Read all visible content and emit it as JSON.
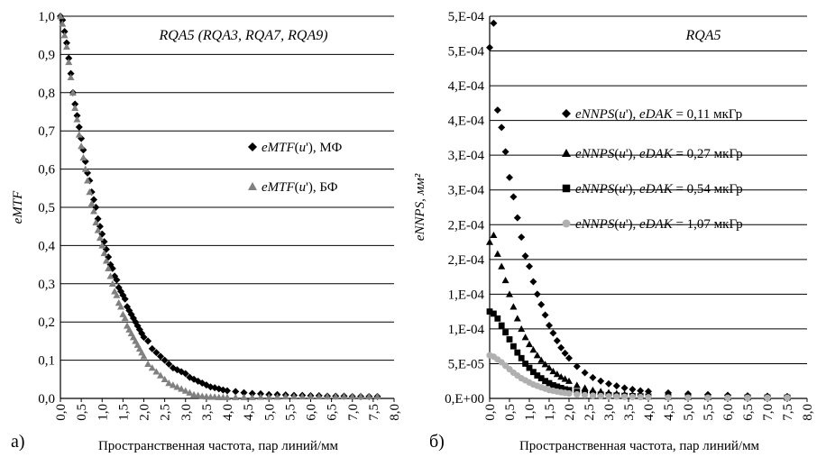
{
  "panels": [
    {
      "panel_label": "а)",
      "annotation_parts": [
        {
          "t": "RQA",
          "i": true
        },
        {
          "t": "5 (",
          "i": false
        },
        {
          "t": "RQA",
          "i": true
        },
        {
          "t": "3, ",
          "i": false
        },
        {
          "t": "RQA",
          "i": true
        },
        {
          "t": "7, ",
          "i": false
        },
        {
          "t": "RQA",
          "i": true
        },
        {
          "t": "9)",
          "i": false
        }
      ],
      "ylabel": "eMTF",
      "xlabel": "Пространственная частота, пар линий/мм",
      "yticks": [
        "0,0",
        "0,1",
        "0,2",
        "0,3",
        "0,4",
        "0,5",
        "0,6",
        "0,7",
        "0,8",
        "0,9",
        "1,0"
      ],
      "xticks": [
        "0,0",
        "0,5",
        "1,0",
        "1,5",
        "2,0",
        "2,5",
        "3,0",
        "3,5",
        "4,0",
        "4,5",
        "5,0",
        "5,5",
        "6,0",
        "6,5",
        "7,0",
        "7,5",
        "8,0"
      ],
      "legend": [
        {
          "parts": [
            {
              "t": "eMTF",
              "i": true
            },
            {
              "t": "(",
              "i": false
            },
            {
              "t": "u",
              "i": true
            },
            {
              "t": "'), МФ",
              "i": false
            }
          ],
          "color": "#000000",
          "marker": "diamond"
        },
        {
          "parts": [
            {
              "t": "eMTF",
              "i": true
            },
            {
              "t": "(",
              "i": false
            },
            {
              "t": "u",
              "i": true
            },
            {
              "t": "'), БФ",
              "i": false
            }
          ],
          "color": "#808080",
          "marker": "triangle"
        }
      ]
    },
    {
      "panel_label": "б)",
      "annotation_parts": [
        {
          "t": "RQA",
          "i": true
        },
        {
          "t": "5",
          "i": false
        }
      ],
      "ylabel": "eNNPS, мм²",
      "xlabel": "Пространственная частота, пар линий/мм",
      "yticks": [
        "0,E+00",
        "5,E-05",
        "1,E-04",
        "1,E-04",
        "2,E-04",
        "2,E-04",
        "3,E-04",
        "3,E-04",
        "4,E-04",
        "4,E-04",
        "5,E-04",
        "5,E-04"
      ],
      "xticks": [
        "0,0",
        "0,5",
        "1,0",
        "1,5",
        "2,0",
        "2,5",
        "3,0",
        "3,5",
        "4,0",
        "4,5",
        "5,0",
        "5,5",
        "6,0",
        "6,5",
        "7,0",
        "7,5",
        "8,0"
      ],
      "legend": [
        {
          "parts": [
            {
              "t": "eNNPS",
              "i": true
            },
            {
              "t": "(",
              "i": false
            },
            {
              "t": "u",
              "i": true
            },
            {
              "t": "'), ",
              "i": false
            },
            {
              "t": "eDAK",
              "i": true
            },
            {
              "t": " = 0,11 мкГр",
              "i": false
            }
          ],
          "color": "#000000",
          "marker": "diamond"
        },
        {
          "parts": [
            {
              "t": "eNNPS",
              "i": true
            },
            {
              "t": "(",
              "i": false
            },
            {
              "t": "u",
              "i": true
            },
            {
              "t": "'), ",
              "i": false
            },
            {
              "t": "eDAK",
              "i": true
            },
            {
              "t": " = 0,27 мкГр",
              "i": false
            }
          ],
          "color": "#000000",
          "marker": "triangle"
        },
        {
          "parts": [
            {
              "t": "eNNPS",
              "i": true
            },
            {
              "t": "(",
              "i": false
            },
            {
              "t": "u",
              "i": true
            },
            {
              "t": "'), ",
              "i": false
            },
            {
              "t": "eDAK",
              "i": true
            },
            {
              "t": " = 0,54 мкГр",
              "i": false
            }
          ],
          "color": "#000000",
          "marker": "square"
        },
        {
          "parts": [
            {
              "t": "eNNPS",
              "i": true
            },
            {
              "t": "(",
              "i": false
            },
            {
              "t": "u",
              "i": true
            },
            {
              "t": "'), ",
              "i": false
            },
            {
              "t": "eDAK",
              "i": true
            },
            {
              "t": " = 1,07 мкГр",
              "i": false
            }
          ],
          "color": "#b0b0b0",
          "marker": "circle"
        }
      ]
    }
  ],
  "chart_data": [
    {
      "type": "scatter",
      "xlim": [
        0,
        8
      ],
      "ylim": [
        0,
        1
      ],
      "grid": "horizontal",
      "legend_position": "right-middle",
      "series": [
        {
          "name": "eMTF(u'), МФ",
          "marker": "diamond",
          "color": "#000000",
          "x": [
            0.0,
            0.05,
            0.1,
            0.15,
            0.2,
            0.25,
            0.3,
            0.35,
            0.4,
            0.45,
            0.5,
            0.55,
            0.6,
            0.65,
            0.7,
            0.75,
            0.8,
            0.85,
            0.9,
            0.95,
            1.0,
            1.05,
            1.1,
            1.15,
            1.2,
            1.25,
            1.3,
            1.35,
            1.4,
            1.45,
            1.5,
            1.55,
            1.6,
            1.65,
            1.7,
            1.75,
            1.8,
            1.85,
            1.9,
            1.95,
            2.0,
            2.1,
            2.2,
            2.3,
            2.4,
            2.5,
            2.6,
            2.7,
            2.8,
            2.9,
            3.0,
            3.1,
            3.2,
            3.3,
            3.4,
            3.5,
            3.6,
            3.7,
            3.8,
            3.9,
            4.0,
            4.2,
            4.4,
            4.6,
            4.8,
            5.0,
            5.2,
            5.4,
            5.6,
            5.8,
            6.0,
            6.2,
            6.4,
            6.6,
            6.8,
            7.0,
            7.2,
            7.4,
            7.6
          ],
          "y": [
            1.0,
            0.99,
            0.96,
            0.93,
            0.89,
            0.85,
            0.8,
            0.77,
            0.74,
            0.71,
            0.68,
            0.65,
            0.62,
            0.59,
            0.57,
            0.54,
            0.52,
            0.5,
            0.47,
            0.45,
            0.43,
            0.41,
            0.39,
            0.37,
            0.35,
            0.34,
            0.32,
            0.31,
            0.29,
            0.28,
            0.27,
            0.26,
            0.24,
            0.23,
            0.22,
            0.21,
            0.2,
            0.19,
            0.18,
            0.17,
            0.16,
            0.15,
            0.13,
            0.12,
            0.11,
            0.1,
            0.09,
            0.08,
            0.075,
            0.07,
            0.065,
            0.055,
            0.05,
            0.045,
            0.04,
            0.035,
            0.03,
            0.028,
            0.025,
            0.022,
            0.02,
            0.018,
            0.015,
            0.013,
            0.012,
            0.01,
            0.01,
            0.009,
            0.008,
            0.008,
            0.007,
            0.007,
            0.006,
            0.006,
            0.006,
            0.005,
            0.005,
            0.005,
            0.005
          ]
        },
        {
          "name": "eMTF(u'), БФ",
          "marker": "triangle",
          "color": "#808080",
          "x": [
            0.0,
            0.05,
            0.1,
            0.15,
            0.2,
            0.25,
            0.3,
            0.35,
            0.4,
            0.45,
            0.5,
            0.55,
            0.6,
            0.65,
            0.7,
            0.75,
            0.8,
            0.85,
            0.9,
            0.95,
            1.0,
            1.05,
            1.1,
            1.15,
            1.2,
            1.25,
            1.3,
            1.35,
            1.4,
            1.45,
            1.5,
            1.55,
            1.6,
            1.65,
            1.7,
            1.75,
            1.8,
            1.85,
            1.9,
            1.95,
            2.0,
            2.1,
            2.2,
            2.3,
            2.4,
            2.5,
            2.6,
            2.7,
            2.8,
            2.9,
            3.0,
            3.1,
            3.2,
            3.3,
            3.4,
            3.5,
            3.6,
            3.7,
            3.8,
            3.9,
            4.0,
            4.2,
            4.4,
            4.6,
            4.8,
            5.0,
            5.2,
            5.4,
            5.6,
            5.8,
            6.0,
            6.2,
            6.4,
            6.6,
            6.8,
            7.0,
            7.2,
            7.4,
            7.6
          ],
          "y": [
            1.0,
            0.98,
            0.95,
            0.92,
            0.88,
            0.84,
            0.8,
            0.76,
            0.73,
            0.69,
            0.66,
            0.63,
            0.6,
            0.57,
            0.54,
            0.51,
            0.49,
            0.46,
            0.44,
            0.42,
            0.4,
            0.38,
            0.36,
            0.34,
            0.32,
            0.3,
            0.28,
            0.27,
            0.25,
            0.24,
            0.22,
            0.21,
            0.19,
            0.18,
            0.17,
            0.16,
            0.15,
            0.14,
            0.13,
            0.12,
            0.11,
            0.09,
            0.08,
            0.07,
            0.06,
            0.05,
            0.04,
            0.035,
            0.03,
            0.025,
            0.02,
            0.015,
            0.01,
            0.008,
            0.006,
            0.005,
            0.004,
            0.004,
            0.003,
            0.003,
            0.003,
            0.003,
            0.003,
            0.003,
            0.004,
            0.004,
            0.004,
            0.005,
            0.005,
            0.005,
            0.005,
            0.005,
            0.005,
            0.005,
            0.005,
            0.005,
            0.005,
            0.005,
            0.005
          ]
        }
      ]
    },
    {
      "type": "scatter",
      "xlim": [
        0,
        8
      ],
      "ylim": [
        0,
        0.00055
      ],
      "grid": "horizontal",
      "legend_position": "right-middle",
      "series": [
        {
          "name": "eNNPS(u'), eDAK = 0,11 мкГр",
          "marker": "diamond",
          "color": "#000000",
          "x": [
            0.0,
            0.1,
            0.2,
            0.3,
            0.4,
            0.5,
            0.6,
            0.7,
            0.8,
            0.9,
            1.0,
            1.1,
            1.2,
            1.3,
            1.4,
            1.5,
            1.6,
            1.7,
            1.8,
            1.9,
            2.0,
            2.2,
            2.4,
            2.6,
            2.8,
            3.0,
            3.2,
            3.4,
            3.6,
            3.8,
            4.0,
            4.5,
            5.0,
            5.5,
            6.0,
            6.5,
            7.0,
            7.5
          ],
          "y": [
            0.000505,
            0.00054,
            0.000415,
            0.00039,
            0.000355,
            0.000318,
            0.00029,
            0.00026,
            0.000232,
            0.000205,
            0.00019,
            0.000168,
            0.00015,
            0.000135,
            0.00012,
            0.000105,
            9.4e-05,
            8.3e-05,
            7.3e-05,
            6.5e-05,
            5.8e-05,
            4.6e-05,
            3.7e-05,
            3e-05,
            2.5e-05,
            2.1e-05,
            1.8e-05,
            1.5e-05,
            1.3e-05,
            1.1e-05,
            1e-05,
            8e-06,
            6.5e-06,
            5.5e-06,
            4.5e-06,
            3.8e-06,
            3.2e-06,
            2.8e-06
          ]
        },
        {
          "name": "eNNPS(u'), eDAK = 0,27 мкГр",
          "marker": "triangle",
          "color": "#000000",
          "x": [
            0.0,
            0.1,
            0.2,
            0.3,
            0.4,
            0.5,
            0.6,
            0.7,
            0.8,
            0.9,
            1.0,
            1.1,
            1.2,
            1.3,
            1.4,
            1.5,
            1.6,
            1.7,
            1.8,
            1.9,
            2.0,
            2.2,
            2.4,
            2.6,
            2.8,
            3.0,
            3.2,
            3.4,
            3.6,
            3.8,
            4.0,
            4.5,
            5.0,
            5.5,
            6.0,
            6.5,
            7.0,
            7.5
          ],
          "y": [
            0.000225,
            0.000235,
            0.000208,
            0.00019,
            0.00017,
            0.00015,
            0.000132,
            0.000115,
            0.0001,
            8.8e-05,
            7.8e-05,
            7e-05,
            6.2e-05,
            5.5e-05,
            4.9e-05,
            4.4e-05,
            3.9e-05,
            3.5e-05,
            3.1e-05,
            2.8e-05,
            2.5e-05,
            1.9e-05,
            1.5e-05,
            1.2e-05,
            1e-05,
            8.5e-06,
            7.2e-06,
            6.2e-06,
            5.4e-06,
            4.7e-06,
            4.2e-06,
            3.3e-06,
            2.7e-06,
            2.3e-06,
            2e-06,
            1.8e-06,
            1.6e-06,
            1.5e-06
          ]
        },
        {
          "name": "eNNPS(u'), eDAK = 0,54 мкГр",
          "marker": "square",
          "color": "#000000",
          "x": [
            0.0,
            0.1,
            0.2,
            0.3,
            0.4,
            0.5,
            0.6,
            0.7,
            0.8,
            0.9,
            1.0,
            1.1,
            1.2,
            1.3,
            1.4,
            1.5,
            1.6,
            1.7,
            1.8,
            1.9,
            2.0,
            2.2,
            2.4,
            2.6,
            2.8,
            3.0,
            3.2,
            3.4,
            3.6,
            3.8,
            4.0,
            4.5,
            5.0,
            5.5,
            6.0,
            6.5,
            7.0,
            7.5
          ],
          "y": [
            0.000125,
            0.000122,
            0.000115,
            0.000105,
            9.5e-05,
            8.5e-05,
            7.5e-05,
            6.6e-05,
            5.8e-05,
            5e-05,
            4.4e-05,
            3.8e-05,
            3.3e-05,
            2.9e-05,
            2.5e-05,
            2.2e-05,
            1.9e-05,
            1.7e-05,
            1.5e-05,
            1.3e-05,
            1.2e-05,
            9.5e-06,
            7.8e-06,
            6.5e-06,
            5.5e-06,
            4.8e-06,
            4.2e-06,
            3.7e-06,
            3.3e-06,
            3e-06,
            2.7e-06,
            2.2e-06,
            1.9e-06,
            1.7e-06,
            1.5e-06,
            1.4e-06,
            1.3e-06,
            1.2e-06
          ]
        },
        {
          "name": "eNNPS(u'), eDAK = 1,07 мкГр",
          "marker": "circle",
          "color": "#b0b0b0",
          "x": [
            0.0,
            0.1,
            0.2,
            0.3,
            0.4,
            0.5,
            0.6,
            0.7,
            0.8,
            0.9,
            1.0,
            1.1,
            1.2,
            1.3,
            1.4,
            1.5,
            1.6,
            1.7,
            1.8,
            1.9,
            2.0,
            2.2,
            2.4,
            2.6,
            2.8,
            3.0,
            3.2,
            3.4,
            3.6,
            3.8,
            4.0,
            4.5,
            5.0,
            5.5,
            6.0,
            6.5,
            7.0,
            7.5
          ],
          "y": [
            6.2e-05,
            6e-05,
            5.6e-05,
            5.2e-05,
            4.7e-05,
            4.2e-05,
            3.7e-05,
            3.3e-05,
            2.9e-05,
            2.6e-05,
            2.3e-05,
            2e-05,
            1.8e-05,
            1.6e-05,
            1.4e-05,
            1.2e-05,
            1.1e-05,
            9.8e-06,
            8.8e-06,
            7.9e-06,
            7.1e-06,
            5.8e-06,
            4.8e-06,
            4e-06,
            3.4e-06,
            2.9e-06,
            2.6e-06,
            2.3e-06,
            2.1e-06,
            1.9e-06,
            1.7e-06,
            1.4e-06,
            1.2e-06,
            1.1e-06,
            1e-06,
            1e-06,
            1e-06,
            1e-06
          ]
        }
      ]
    }
  ]
}
